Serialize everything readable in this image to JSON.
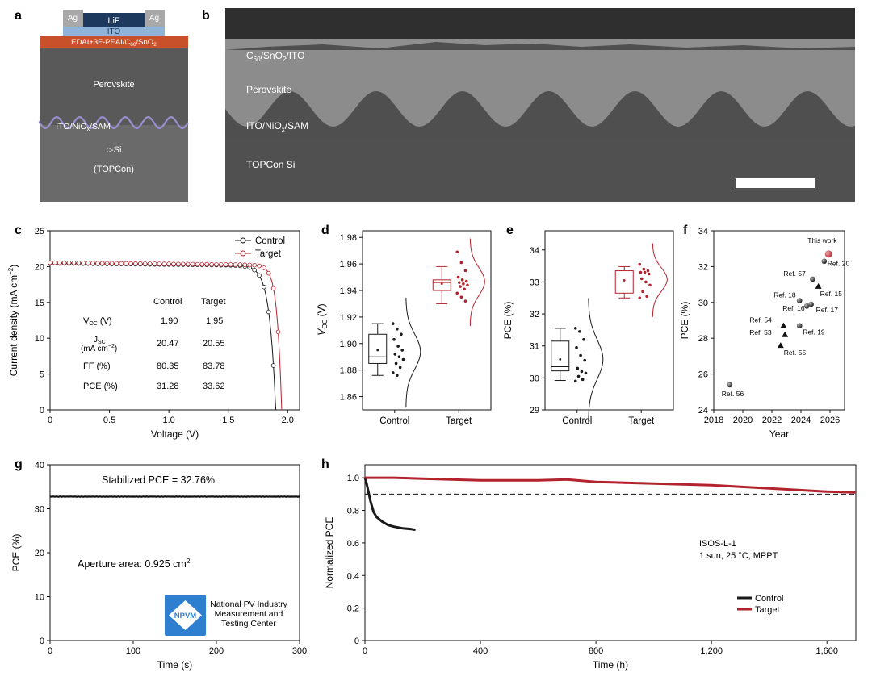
{
  "panels": {
    "a": {
      "letter": "a",
      "layers": {
        "ag_left": "Ag",
        "lif": "LiF",
        "ag_right": "Ag",
        "ito": "ITO",
        "interlayer_prefix": "EDAI+3F-PEAI/C",
        "interlayer_sub1": "60",
        "interlayer_mid": "/SnO",
        "interlayer_sub2": "2",
        "perovskite": "Perovskite",
        "hole_prefix": "ITO/NiO",
        "hole_sub": "x",
        "hole_suffix": "/SAM",
        "csi": "c-Si",
        "topcon": "(TOPCon)"
      },
      "colors": {
        "ag": "#a8a8a8",
        "lif": "#1d3a5e",
        "ito": "#8fb3d9",
        "interlayer": "#c8502b",
        "perovskite": "#5a5a5a",
        "silicon": "#6e6e6e",
        "sam_line": "#9a8fd0"
      }
    },
    "b": {
      "letter": "b",
      "labels": {
        "top_prefix": "C",
        "top_sub1": "60",
        "top_mid": "/SnO",
        "top_sub2": "2",
        "top_suffix": "/ITO",
        "perovskite": "Perovskite",
        "hole_prefix": "ITO/NiO",
        "hole_sub": "x",
        "hole_suffix": "/SAM",
        "si": "TOPCon Si"
      }
    },
    "c": {
      "letter": "c",
      "legend": [
        "Control",
        "Target"
      ],
      "table": {
        "header": [
          "Control",
          "Target"
        ],
        "rows": [
          {
            "label": "V",
            "label_sub": "OC",
            "label_suffix": " (V)",
            "control": "1.90",
            "target": "1.95"
          },
          {
            "label": "J",
            "label_sub": "SC",
            "label_line2": "(mA cm",
            "label_sup": "−2",
            "label_close": ")",
            "control": "20.47",
            "target": "20.55"
          },
          {
            "label": "FF (%)",
            "control": "80.35",
            "target": "83.78"
          },
          {
            "label": "PCE (%)",
            "control": "31.28",
            "target": "33.62"
          }
        ]
      }
    },
    "d": {
      "letter": "d"
    },
    "e": {
      "letter": "e"
    },
    "f": {
      "letter": "f"
    },
    "g": {
      "letter": "g",
      "stabilized_prefix": "Stabilized PCE = ",
      "stabilized_value": "32.76%",
      "aperture_prefix": "Aperture area: 0.925 cm",
      "aperture_sup": "2",
      "logo_text": "NPVM",
      "center_lines": [
        "National PV Industry",
        "Measurement and",
        "Testing Center"
      ]
    },
    "h": {
      "letter": "h",
      "protocol": "ISOS-L-1",
      "conditions": "1 sun, 25 °C, MPPT",
      "legend": [
        "Control",
        "Target"
      ]
    }
  },
  "colors": {
    "control": "#1a1a1a",
    "target": "#b3232e",
    "target_fill": "#c8323c"
  },
  "chart_data": [
    {
      "panel": "c",
      "type": "line",
      "xlabel": "Voltage (V)",
      "ylabel": "Current density (mA cm−2)",
      "xlim": [
        0,
        2.1
      ],
      "ylim": [
        0,
        25
      ],
      "xticks": [
        0,
        0.5,
        1.0,
        1.5,
        2.0
      ],
      "xtick_labels": [
        "0",
        "0.5",
        "1.0",
        "1.5",
        "2.0"
      ],
      "yticks": [
        0,
        5,
        10,
        15,
        20,
        25
      ],
      "series": [
        {
          "name": "Control",
          "jsc": 20.47,
          "voc": 1.9,
          "ff": 80.35
        },
        {
          "name": "Target",
          "jsc": 20.55,
          "voc": 1.95,
          "ff": 83.78
        }
      ]
    },
    {
      "panel": "d",
      "type": "scatter",
      "ylabel": "VOC (V)",
      "ylim": [
        1.85,
        1.985
      ],
      "yticks": [
        1.86,
        1.88,
        1.9,
        1.92,
        1.94,
        1.96,
        1.98
      ],
      "categories": [
        "Control",
        "Target"
      ],
      "series": [
        {
          "name": "Control",
          "box": {
            "min": 1.876,
            "q1": 1.885,
            "median": 1.89,
            "q3": 1.907,
            "max": 1.915,
            "mean": 1.895
          },
          "points": [
            1.915,
            1.911,
            1.907,
            1.903,
            1.898,
            1.895,
            1.892,
            1.89,
            1.888,
            1.885,
            1.882,
            1.878,
            1.876
          ]
        },
        {
          "name": "Target",
          "box": {
            "min": 1.93,
            "q1": 1.94,
            "median": 1.946,
            "q3": 1.948,
            "max": 1.958,
            "mean": 1.945
          },
          "points": [
            1.969,
            1.961,
            1.955,
            1.95,
            1.948,
            1.947,
            1.946,
            1.945,
            1.944,
            1.943,
            1.941,
            1.938,
            1.935,
            1.932
          ]
        }
      ]
    },
    {
      "panel": "e",
      "type": "scatter",
      "ylabel": "PCE (%)",
      "ylim": [
        29,
        34.6
      ],
      "yticks": [
        29,
        30,
        31,
        32,
        33,
        34
      ],
      "categories": [
        "Control",
        "Target"
      ],
      "series": [
        {
          "name": "Control",
          "box": {
            "min": 29.92,
            "q1": 30.22,
            "median": 30.35,
            "q3": 31.15,
            "max": 31.55,
            "mean": 30.58
          },
          "points": [
            31.55,
            31.45,
            31.2,
            30.95,
            30.7,
            30.55,
            30.3,
            30.2,
            30.15,
            30.05,
            29.95,
            29.9
          ]
        },
        {
          "name": "Target",
          "box": {
            "min": 32.5,
            "q1": 32.65,
            "median": 33.25,
            "q3": 33.35,
            "max": 33.48,
            "mean": 33.05
          },
          "points": [
            33.55,
            33.4,
            33.35,
            33.3,
            33.3,
            33.25,
            33.1,
            33.0,
            32.9,
            32.7,
            32.55,
            32.5
          ]
        }
      ]
    },
    {
      "panel": "f",
      "type": "scatter",
      "xlabel": "Year",
      "ylabel": "PCE (%)",
      "xlim": [
        2018,
        2027
      ],
      "ylim": [
        24,
        34
      ],
      "xticks": [
        2018,
        2020,
        2022,
        2024,
        2026
      ],
      "yticks": [
        24,
        26,
        28,
        30,
        32,
        34
      ],
      "points": [
        {
          "label": "Ref. 56",
          "x": 2019.1,
          "y": 25.4,
          "marker": "circle"
        },
        {
          "label": "Ref. 55",
          "x": 2022.6,
          "y": 27.6,
          "marker": "triangle"
        },
        {
          "label": "Ref. 53",
          "x": 2022.9,
          "y": 28.2,
          "marker": "triangle"
        },
        {
          "label": "Ref. 54",
          "x": 2022.8,
          "y": 28.7,
          "marker": "triangle"
        },
        {
          "label": "Ref. 19",
          "x": 2023.9,
          "y": 28.7,
          "marker": "circle"
        },
        {
          "label": "Ref. 18",
          "x": 2023.9,
          "y": 30.1,
          "marker": "circle"
        },
        {
          "label": "Ref. 16",
          "x": 2024.4,
          "y": 29.8,
          "marker": "circle"
        },
        {
          "label": "Ref. 17",
          "x": 2024.7,
          "y": 29.9,
          "marker": "circle"
        },
        {
          "label": "Ref. 57",
          "x": 2024.8,
          "y": 31.3,
          "marker": "circle"
        },
        {
          "label": "Ref. 15",
          "x": 2025.2,
          "y": 30.9,
          "marker": "triangle"
        },
        {
          "label": "Ref. 20",
          "x": 2025.6,
          "y": 32.3,
          "marker": "circle"
        },
        {
          "label": "This work",
          "x": 2025.9,
          "y": 32.7,
          "marker": "star-circle"
        }
      ]
    },
    {
      "panel": "g",
      "type": "line",
      "xlabel": "Time (s)",
      "ylabel": "PCE (%)",
      "xlim": [
        0,
        300
      ],
      "ylim": [
        0,
        40
      ],
      "xticks": [
        0,
        100,
        200,
        300
      ],
      "yticks": [
        0,
        10,
        20,
        30,
        40
      ],
      "series": [
        {
          "name": "Stabilized",
          "value": 32.76
        }
      ]
    },
    {
      "panel": "h",
      "type": "line",
      "xlabel": "Time (h)",
      "ylabel": "Normalized PCE",
      "xlim": [
        0,
        1700
      ],
      "ylim": [
        0,
        1.08
      ],
      "xticks": [
        0,
        400,
        800,
        1200,
        1600
      ],
      "xtick_labels": [
        "0",
        "400",
        "800",
        "1,200",
        "1,600"
      ],
      "yticks": [
        0,
        0.2,
        0.4,
        0.6,
        0.8,
        1.0
      ],
      "ytick_labels": [
        "0",
        "0.2",
        "0.4",
        "0.6",
        "0.8",
        "1.0"
      ],
      "reference_line": 0.9,
      "series": [
        {
          "name": "Control",
          "x": [
            0,
            5,
            10,
            20,
            30,
            40,
            60,
            80,
            100,
            130,
            160,
            175
          ],
          "values": [
            1.0,
            0.97,
            0.93,
            0.85,
            0.79,
            0.76,
            0.73,
            0.71,
            0.7,
            0.69,
            0.685,
            0.68
          ]
        },
        {
          "name": "Target",
          "x": [
            0,
            100,
            200,
            300,
            400,
            500,
            600,
            700,
            800,
            900,
            1000,
            1100,
            1200,
            1300,
            1400,
            1500,
            1600,
            1700
          ],
          "values": [
            1.0,
            1.0,
            0.995,
            0.99,
            0.985,
            0.985,
            0.985,
            0.99,
            0.975,
            0.97,
            0.965,
            0.96,
            0.955,
            0.945,
            0.935,
            0.925,
            0.915,
            0.91
          ]
        }
      ]
    }
  ]
}
